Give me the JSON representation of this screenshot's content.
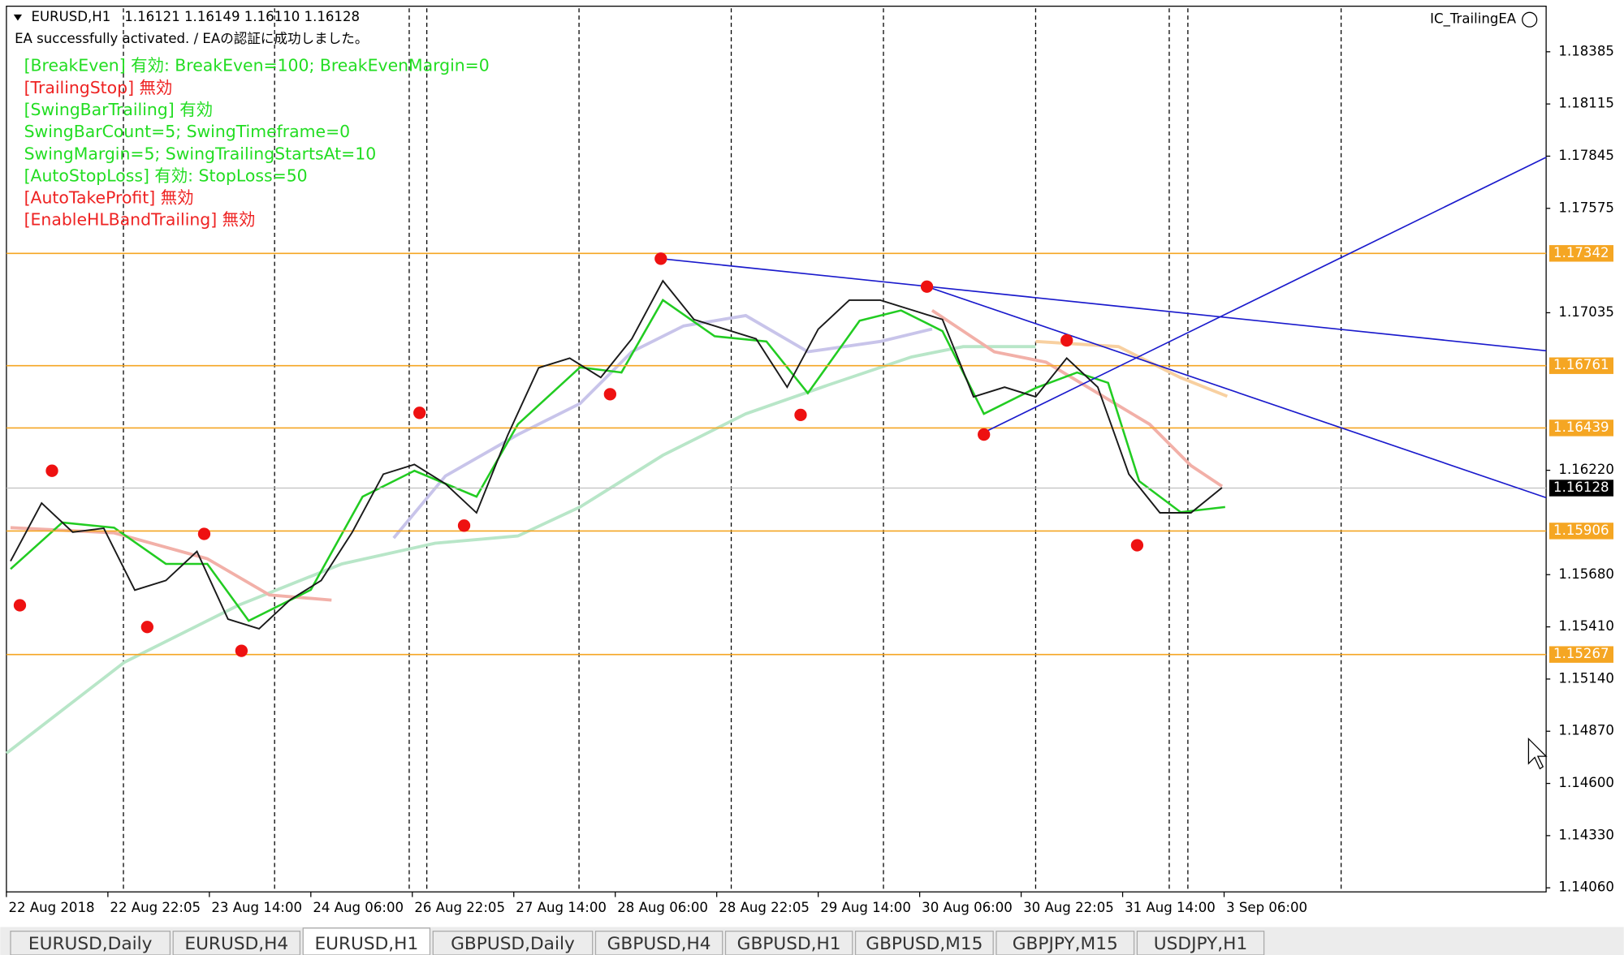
{
  "header": {
    "symbol": "EURUSD,H1",
    "ohlc": "1.16121 1.16149 1.16110 1.16128",
    "status": "EA successfully activated. / EAの認証に成功しました。",
    "ea_name": "IC_TrailingEA"
  },
  "overlay": [
    {
      "text": "[BreakEven] 有効: BreakEven=100; BreakEvenMargin=0",
      "color": "#22dd22"
    },
    {
      "text": "[TrailingStop] 無効",
      "color": "#ee2222"
    },
    {
      "text": "[SwingBarTrailing] 有効",
      "color": "#22dd22"
    },
    {
      "text": "SwingBarCount=5; SwingTimeframe=0",
      "color": "#22dd22"
    },
    {
      "text": "SwingMargin=5; SwingTrailingStartsAt=10",
      "color": "#22dd22"
    },
    {
      "text": "[AutoStopLoss] 有効: StopLoss=50",
      "color": "#22dd22"
    },
    {
      "text": "[AutoTakeProfit] 無効",
      "color": "#ee2222"
    },
    {
      "text": "[EnableHLBandTrailing] 無効",
      "color": "#ee2222"
    }
  ],
  "chart": {
    "ylim": [
      1.14039,
      1.1861
    ],
    "yticks": [
      1.18385,
      1.18115,
      1.17845,
      1.17575,
      1.17035,
      {
        "value": 1.1622,
        "label": "1.16220"
      },
      {
        "value": 1.1568,
        "label": "1.15680"
      },
      {
        "value": 1.1541,
        "label": "1.15410"
      },
      {
        "value": 1.1514,
        "label": "1.15140"
      },
      {
        "value": 1.1487,
        "label": "1.14870"
      },
      {
        "value": 1.146,
        "label": "1.14600"
      },
      {
        "value": 1.1433,
        "label": "1.14330"
      },
      {
        "value": 1.1406,
        "label": "1.14060"
      }
    ],
    "levels": [
      1.17342,
      1.16761,
      1.16439,
      1.15906,
      1.15267
    ],
    "current_price": 1.16128,
    "level_color": "#f5a623",
    "price_color": "#1a1a1a",
    "time_labels": [
      "22 Aug 2018",
      "22 Aug 22:05",
      "23 Aug 14:00",
      "24 Aug 06:00",
      "26 Aug 22:05",
      "27 Aug 14:00",
      "28 Aug 06:00",
      "28 Aug 22:05",
      "29 Aug 14:00",
      "30 Aug 06:00",
      "30 Aug 22:05",
      "31 Aug 14:00",
      "3 Sep 06:00"
    ],
    "prices": [
      1.1575,
      1.1605,
      1.159,
      1.1592,
      1.156,
      1.1565,
      1.158,
      1.1545,
      1.154,
      1.1555,
      1.1565,
      1.159,
      1.162,
      1.1625,
      1.1615,
      1.16,
      1.164,
      1.1675,
      1.168,
      1.167,
      1.169,
      1.172,
      1.17,
      1.1695,
      1.169,
      1.1665,
      1.1695,
      1.171,
      1.171,
      1.1705,
      1.17,
      1.166,
      1.1665,
      1.166,
      1.168,
      1.1665,
      1.162,
      1.16,
      1.16,
      1.1613
    ]
  },
  "tabs": [
    "EURUSD,Daily",
    "EURUSD,H4",
    "EURUSD,H1",
    "GBPUSD,Daily",
    "GBPUSD,H4",
    "GBPUSD,H1",
    "GBPUSD,M15",
    "GBPJPY,M15",
    "USDJPY,H1"
  ],
  "active_tab": 2
}
